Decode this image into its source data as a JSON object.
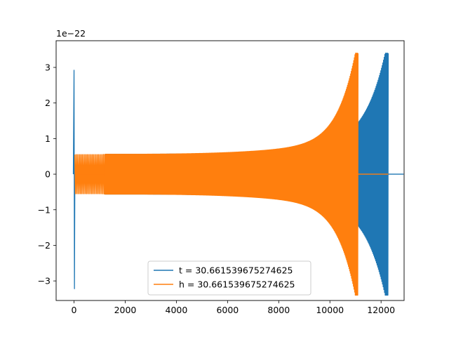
{
  "chart_data": {
    "type": "line",
    "title": "",
    "xlabel": "",
    "ylabel": "",
    "y_scale_label": "1e−22",
    "xlim": [
      -700,
      12900
    ],
    "ylim": [
      -3.55,
      3.75
    ],
    "x_ticks": [
      0,
      2000,
      4000,
      6000,
      8000,
      10000,
      12000
    ],
    "x_tick_labels": [
      "0",
      "2000",
      "4000",
      "6000",
      "8000",
      "10000",
      "12000"
    ],
    "y_ticks": [
      -3,
      -2,
      -1,
      0,
      1,
      2,
      3
    ],
    "y_tick_labels": [
      "−3",
      "−2",
      "−1",
      "0",
      "1",
      "2",
      "3"
    ],
    "grid": false,
    "legend_position": "lower-center",
    "series": [
      {
        "name": "t = 30.661539675274625",
        "color": "#1f77b4",
        "segments": [
          {
            "kind": "spike",
            "x": 0,
            "peak": 2.92,
            "trough": -3.22
          },
          {
            "kind": "chirp",
            "x_start": 1200,
            "x_end": 12280,
            "amp_start": 0.56,
            "amp_end": 3.4,
            "cycles": 420
          },
          {
            "kind": "flat",
            "x_start": 12280,
            "x_end": 12280,
            "value": 0
          }
        ]
      },
      {
        "name": "h = 30.661539675274625",
        "color": "#ff7f0e",
        "segments": [
          {
            "kind": "chirp",
            "x_start": 30,
            "x_end": 1200,
            "amp_start": 0.55,
            "amp_end": 0.56,
            "cycles": 24
          },
          {
            "kind": "flat",
            "x_start": 30,
            "x_end": 1200,
            "value": 0
          },
          {
            "kind": "chirp",
            "x_start": 1200,
            "x_end": 11100,
            "amp_start": 0.56,
            "amp_end": 3.4,
            "cycles": 410
          },
          {
            "kind": "flat",
            "x_start": 11100,
            "x_end": 12280,
            "value": 0
          }
        ]
      }
    ]
  }
}
